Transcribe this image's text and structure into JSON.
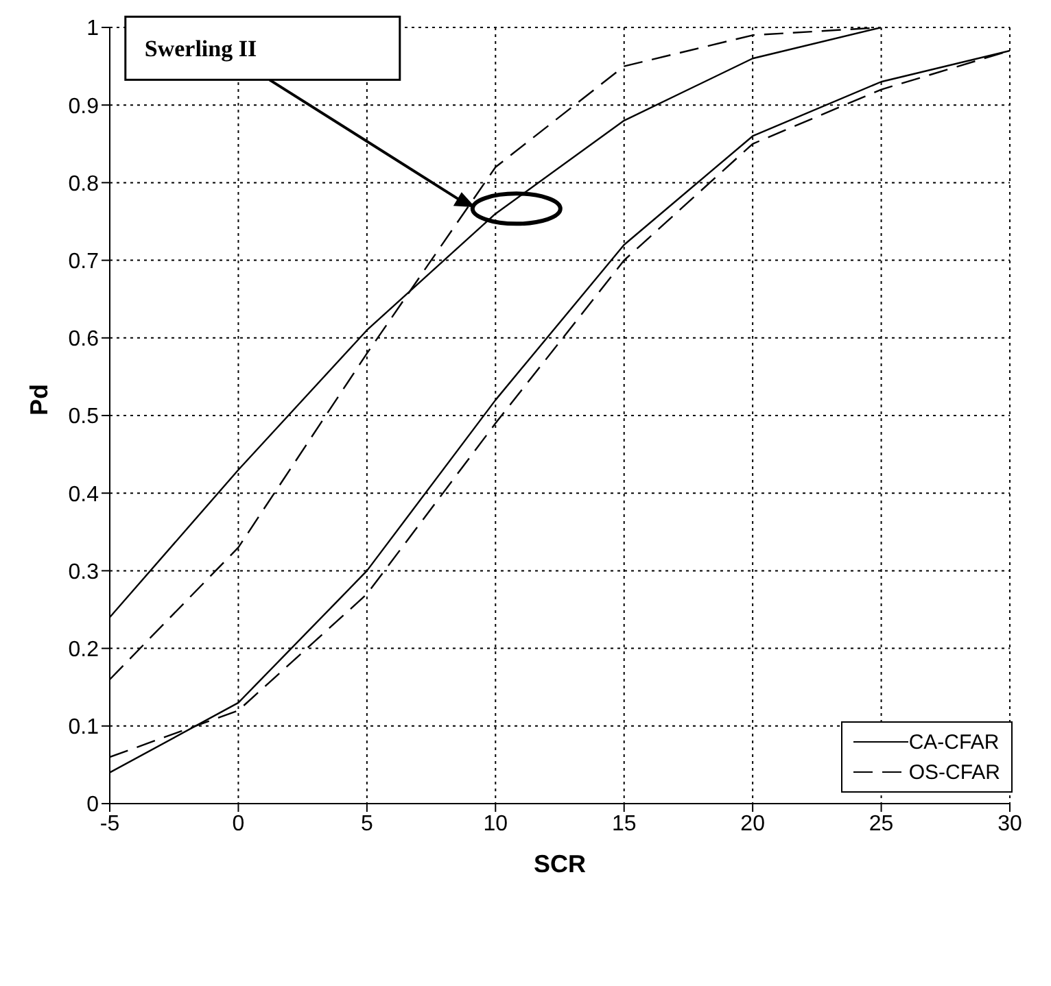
{
  "chart_data": {
    "type": "line",
    "xlabel": "SCR",
    "ylabel": "Pd",
    "x": [
      -5,
      0,
      5,
      10,
      15,
      20,
      25,
      30
    ],
    "series": [
      {
        "name": "CA-CFAR",
        "color": "#000000",
        "line_style": "solid",
        "values": [
          0.24,
          0.43,
          0.61,
          0.76,
          0.88,
          0.96,
          1.0,
          null
        ]
      },
      {
        "name": "OS-CFAR",
        "color": "#000000",
        "line_style": "dashed",
        "values": [
          0.16,
          0.33,
          0.58,
          0.82,
          0.95,
          0.99,
          1.0,
          null
        ]
      },
      {
        "color": "#000000",
        "line_style": "solid",
        "values": [
          0.04,
          0.13,
          0.3,
          0.52,
          0.72,
          0.86,
          0.93,
          0.97
        ]
      },
      {
        "color": "#000000",
        "line_style": "dashed",
        "values": [
          0.06,
          0.12,
          0.27,
          0.49,
          0.7,
          0.85,
          0.92,
          0.97
        ]
      }
    ],
    "xlim": [
      -5,
      30
    ],
    "xticks": [
      -5,
      0,
      5,
      10,
      15,
      20,
      25,
      30
    ],
    "ylim": [
      0,
      1
    ],
    "yticks": [
      0,
      0.1,
      0.2,
      0.3,
      0.4,
      0.5,
      0.6,
      0.7,
      0.8,
      0.9,
      1
    ],
    "grid": true,
    "legend": "bottom right",
    "marker": "none",
    "annotations": [
      {
        "text": "Swerling II",
        "x": 9,
        "y": 0.77
      }
    ]
  }
}
